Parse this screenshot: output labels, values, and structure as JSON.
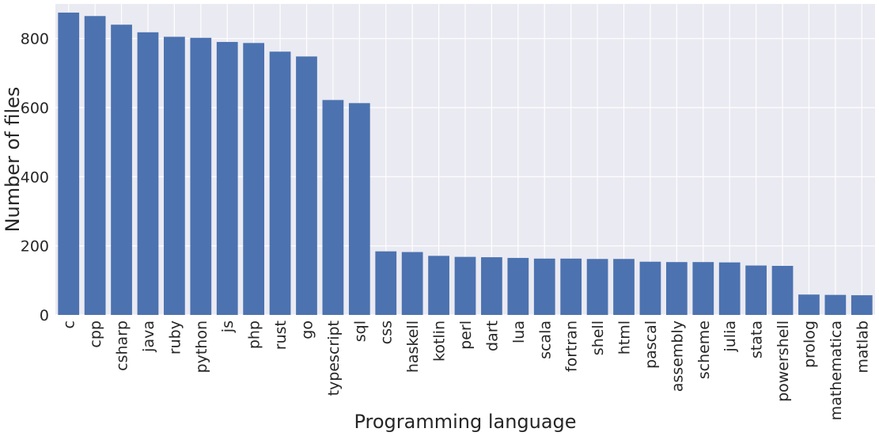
{
  "chart_data": {
    "type": "bar",
    "title": "",
    "xlabel": "Programming language",
    "ylabel": "Number of files",
    "ylim": [
      0,
      900
    ],
    "yticks": [
      0,
      200,
      400,
      600,
      800
    ],
    "grid": true,
    "colors": {
      "bar": "#4c72b0",
      "plot_bg": "#eaeaf2",
      "grid": "#ffffff"
    },
    "categories": [
      "c",
      "cpp",
      "csharp",
      "java",
      "ruby",
      "python",
      "js",
      "php",
      "rust",
      "go",
      "typescript",
      "sql",
      "css",
      "haskell",
      "kotlin",
      "perl",
      "dart",
      "lua",
      "scala",
      "fortran",
      "shell",
      "html",
      "pascal",
      "assembly",
      "scheme",
      "julia",
      "stata",
      "powershell",
      "prolog",
      "mathematica",
      "matlab"
    ],
    "values": [
      875,
      865,
      840,
      818,
      805,
      802,
      790,
      787,
      762,
      748,
      622,
      613,
      184,
      182,
      171,
      168,
      167,
      165,
      163,
      163,
      162,
      162,
      154,
      153,
      153,
      152,
      143,
      142,
      59,
      58,
      57
    ]
  }
}
